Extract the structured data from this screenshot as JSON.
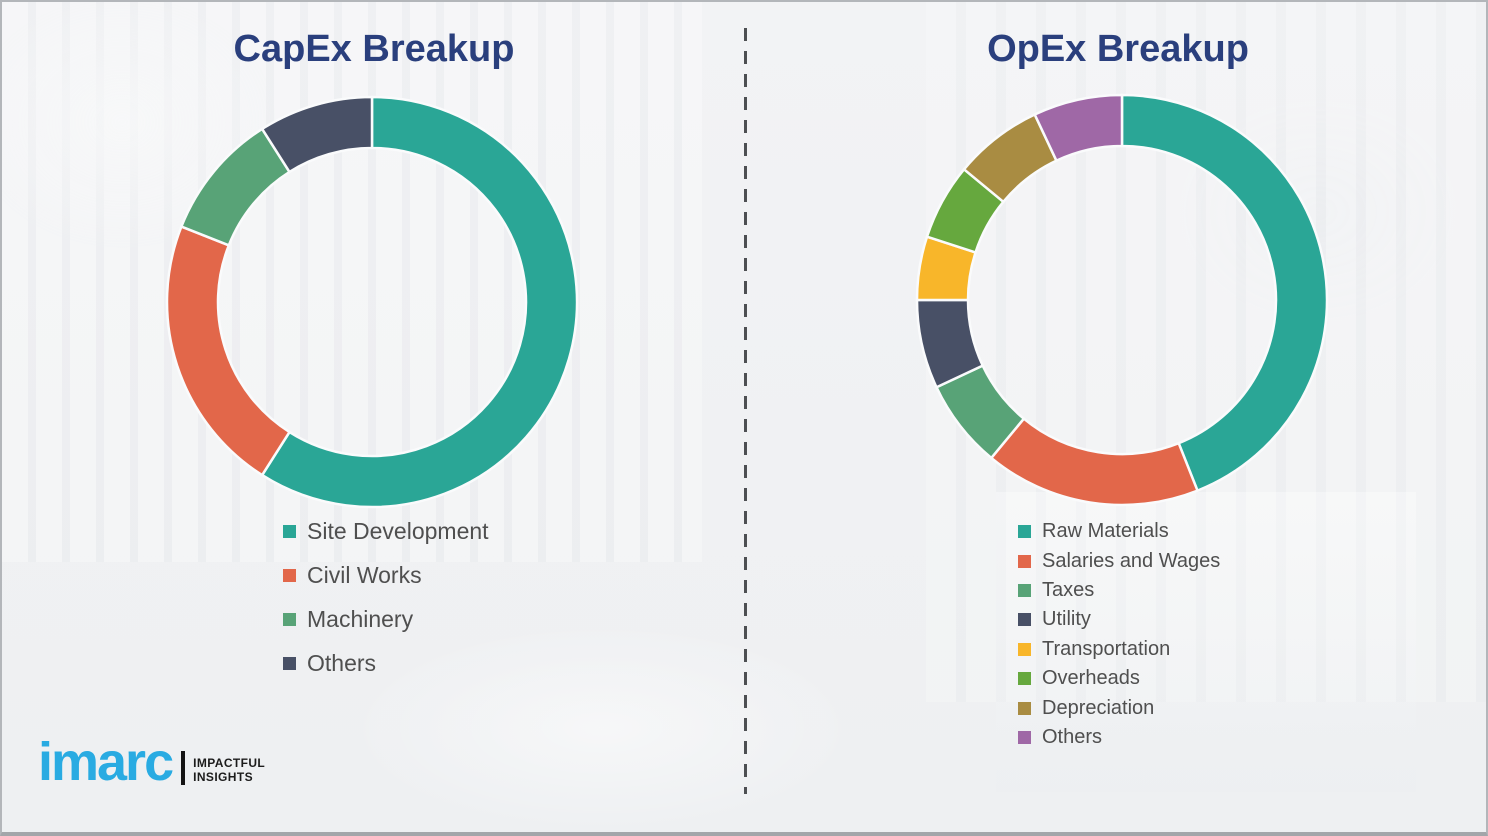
{
  "chart_data": [
    {
      "type": "pie",
      "subtype": "donut",
      "title": "CapEx Breakup",
      "categories": [
        "Site Development",
        "Civil Works",
        "Machinery",
        "Others"
      ],
      "values": [
        59,
        22,
        10,
        9
      ],
      "unit": "percent-of-ring",
      "colors": [
        "#2aa696",
        "#e2674a",
        "#58a377",
        "#485066"
      ],
      "start_angle_deg": 0,
      "direction": "clockwise",
      "donut_hole_ratio": 0.75,
      "legend_position": "below-left",
      "data_labels": "none"
    },
    {
      "type": "pie",
      "subtype": "donut",
      "title": "OpEx Breakup",
      "categories": [
        "Raw Materials",
        "Salaries and Wages",
        "Taxes",
        "Utility",
        "Transportation",
        "Overheads",
        "Depreciation",
        "Others"
      ],
      "values": [
        44,
        17,
        7,
        7,
        5,
        6,
        7,
        7
      ],
      "unit": "percent-of-ring",
      "colors": [
        "#2aa696",
        "#e2674a",
        "#58a377",
        "#485066",
        "#f8b62a",
        "#66a83e",
        "#a98c42",
        "#9f68a6"
      ],
      "start_angle_deg": 0,
      "direction": "clockwise",
      "donut_hole_ratio": 0.75,
      "legend_position": "below-left",
      "data_labels": "none"
    }
  ],
  "logo": {
    "brand": "imarc",
    "tagline_line1": "IMPACTFUL",
    "tagline_line2": "INSIGHTS",
    "brand_color": "#29abe2"
  },
  "style_colors": {
    "title_text": "#2a3f7d",
    "legend_text": "#4f4f4f",
    "divider": "#4d4f52",
    "background": "#f0f1f3",
    "segment_gap_stroke": "#fafbfc"
  }
}
